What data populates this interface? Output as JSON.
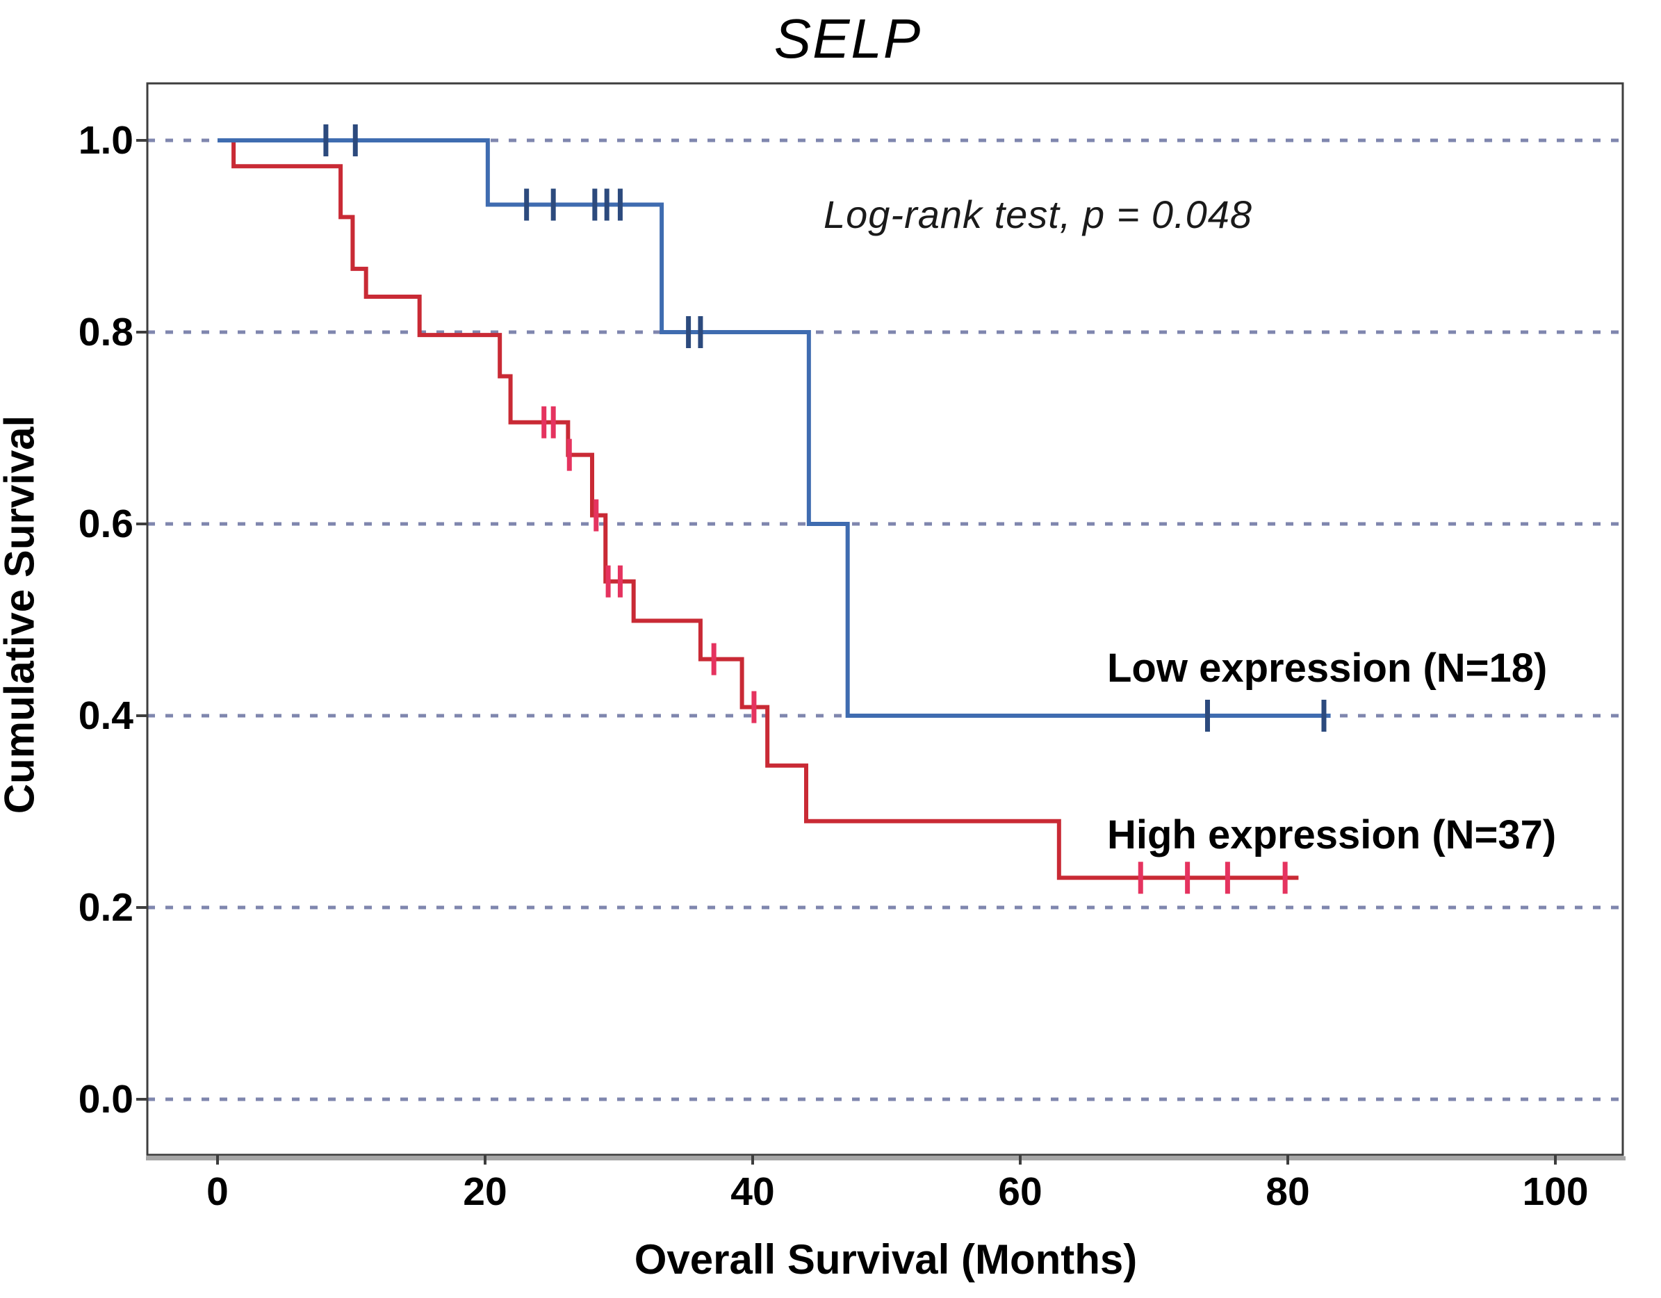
{
  "title": "SELP",
  "annotation": "Log-rank test, p = 0.048",
  "axes": {
    "xlabel": "Overall Survival (Months)",
    "ylabel": "Cumulative Survival",
    "x_tick_labels": [
      "0",
      "20",
      "40",
      "60",
      "80",
      "100"
    ],
    "x_tick_values": [
      0,
      20,
      40,
      60,
      80,
      100
    ],
    "y_tick_labels": [
      "1.0",
      "0.8",
      "0.6",
      "0.4",
      "0.2",
      "0.0"
    ],
    "y_tick_values": [
      1.0,
      0.8,
      0.6,
      0.4,
      0.2,
      0.0
    ]
  },
  "colors": {
    "grid": "#7f86ae",
    "frame": "#3e3e3e",
    "frame_shadow": "#a6a6a6",
    "low_line": "#3f6cb0",
    "low_censor": "#2c4a7d",
    "high_line": "#c92a35",
    "high_censor": "#e5335f"
  },
  "chart_data": {
    "type": "line",
    "subtype": "kaplan-meier-step",
    "title": "SELP",
    "xlabel": "Overall Survival (Months)",
    "ylabel": "Cumulative Survival",
    "xlim": [
      0,
      100
    ],
    "ylim": [
      0.0,
      1.0
    ],
    "grid": "horizontal-dashed",
    "legend_position": "inline-right",
    "annotation": "Log-rank test, p = 0.048",
    "p_value": 0.048,
    "series": [
      {
        "name": "High expression (N=37)",
        "n": 37,
        "color": "#c92a35",
        "steps": [
          [
            0,
            1.0
          ],
          [
            1.2,
            1.0
          ],
          [
            1.2,
            0.973
          ],
          [
            9.2,
            0.973
          ],
          [
            9.2,
            0.92
          ],
          [
            10.1,
            0.92
          ],
          [
            10.1,
            0.866
          ],
          [
            11.1,
            0.866
          ],
          [
            11.1,
            0.837
          ],
          [
            15.1,
            0.837
          ],
          [
            15.1,
            0.797
          ],
          [
            21.1,
            0.797
          ],
          [
            21.1,
            0.754
          ],
          [
            21.9,
            0.754
          ],
          [
            21.9,
            0.706
          ],
          [
            26.2,
            0.706
          ],
          [
            26.2,
            0.672
          ],
          [
            28.0,
            0.672
          ],
          [
            28.0,
            0.609
          ],
          [
            29.0,
            0.609
          ],
          [
            29.0,
            0.54
          ],
          [
            31.1,
            0.54
          ],
          [
            31.1,
            0.499
          ],
          [
            36.1,
            0.499
          ],
          [
            36.1,
            0.459
          ],
          [
            39.2,
            0.459
          ],
          [
            39.2,
            0.409
          ],
          [
            41.1,
            0.409
          ],
          [
            41.1,
            0.348
          ],
          [
            44.0,
            0.348
          ],
          [
            44.0,
            0.29
          ],
          [
            62.9,
            0.29
          ],
          [
            62.9,
            0.231
          ],
          [
            80.8,
            0.231
          ]
        ],
        "censors": [
          [
            24.4,
            0.706
          ],
          [
            25.1,
            0.706
          ],
          [
            26.3,
            0.672
          ],
          [
            28.3,
            0.609
          ],
          [
            29.2,
            0.54
          ],
          [
            30.1,
            0.54
          ],
          [
            37.1,
            0.459
          ],
          [
            40.1,
            0.409
          ],
          [
            69.0,
            0.231
          ],
          [
            72.5,
            0.231
          ],
          [
            75.5,
            0.231
          ],
          [
            79.8,
            0.231
          ]
        ]
      },
      {
        "name": "Low expression (N=18)",
        "n": 18,
        "color": "#3f6cb0",
        "steps": [
          [
            0,
            1.0
          ],
          [
            20.2,
            1.0
          ],
          [
            20.2,
            0.933
          ],
          [
            33.2,
            0.933
          ],
          [
            33.2,
            0.8
          ],
          [
            44.2,
            0.8
          ],
          [
            44.2,
            0.6
          ],
          [
            47.1,
            0.6
          ],
          [
            47.1,
            0.4
          ],
          [
            83.2,
            0.4
          ]
        ],
        "censors": [
          [
            8.1,
            1.0
          ],
          [
            10.3,
            1.0
          ],
          [
            23.1,
            0.933
          ],
          [
            25.1,
            0.933
          ],
          [
            28.2,
            0.933
          ],
          [
            29.1,
            0.933
          ],
          [
            30.1,
            0.933
          ],
          [
            35.2,
            0.8
          ],
          [
            36.1,
            0.8
          ],
          [
            74.0,
            0.4
          ],
          [
            82.7,
            0.4
          ]
        ]
      }
    ]
  }
}
